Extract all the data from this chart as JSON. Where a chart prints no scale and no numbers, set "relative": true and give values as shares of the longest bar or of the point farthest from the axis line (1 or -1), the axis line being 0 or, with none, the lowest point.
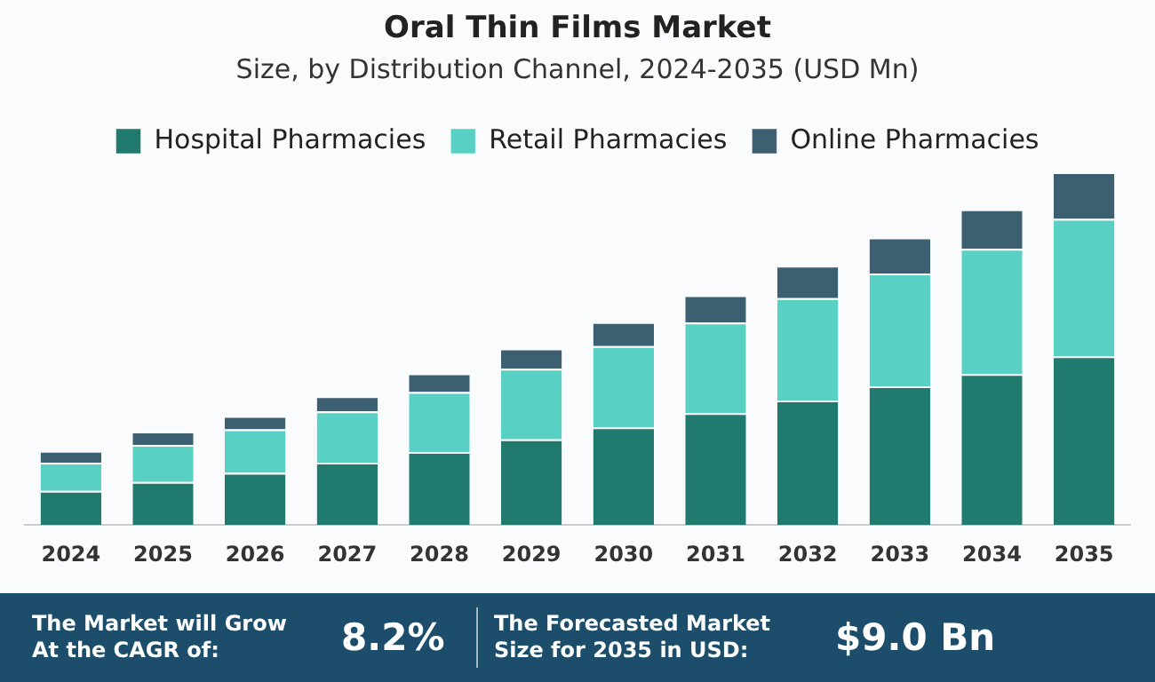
{
  "chart_data": {
    "type": "bar",
    "title": "Oral Thin Films Market",
    "subtitle": "Size, by Distribution Channel, 2024-2035 (USD Mn)",
    "categories": [
      "2024",
      "2025",
      "2026",
      "2027",
      "2028",
      "2029",
      "2030",
      "2031",
      "2032",
      "2033",
      "2034",
      "2035"
    ],
    "stacked": true,
    "relative": true,
    "legend": "top",
    "grid": false,
    "series": [
      {
        "name": "Hospital Pharmacies",
        "color": "#217a6e",
        "values": [
          0.097,
          0.122,
          0.148,
          0.177,
          0.207,
          0.243,
          0.277,
          0.317,
          0.353,
          0.393,
          0.428,
          0.478
        ]
      },
      {
        "name": "Retail Pharmacies",
        "color": "#58d0c4",
        "values": [
          0.08,
          0.105,
          0.123,
          0.145,
          0.17,
          0.2,
          0.23,
          0.257,
          0.29,
          0.32,
          0.355,
          0.39
        ]
      },
      {
        "name": "Online Pharmacies",
        "color": "#3d5f72",
        "values": [
          0.033,
          0.038,
          0.038,
          0.043,
          0.053,
          0.057,
          0.068,
          0.077,
          0.092,
          0.102,
          0.112,
          0.132
        ]
      }
    ],
    "annotations": [
      "The Market will Grow At the CAGR of:",
      "8.2%",
      "The Forecasted Market Size for 2035 in USD:",
      "$9.0 Bn"
    ]
  }
}
